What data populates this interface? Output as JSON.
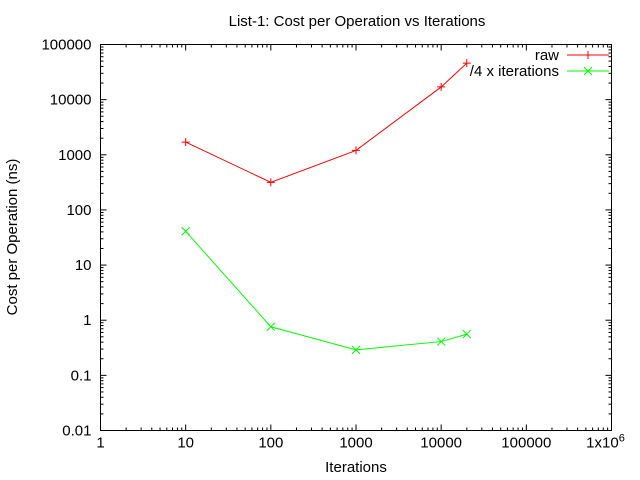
{
  "chart_data": {
    "type": "line",
    "title": "List-1: Cost per Operation vs Iterations",
    "xlabel": "Iterations",
    "ylabel": "Cost per Operation (ns)",
    "xscale": "log",
    "yscale": "log",
    "xlim": [
      1,
      1000000
    ],
    "ylim": [
      0.01,
      100000
    ],
    "x_ticks": [
      {
        "value": 1,
        "label": "1"
      },
      {
        "value": 10,
        "label": "10"
      },
      {
        "value": 100,
        "label": "100"
      },
      {
        "value": 1000,
        "label": "1000"
      },
      {
        "value": 10000,
        "label": "10000"
      },
      {
        "value": 100000,
        "label": "100000"
      },
      {
        "value": 1000000,
        "label": "1x10",
        "sup": "6"
      }
    ],
    "y_ticks": [
      {
        "value": 0.01,
        "label": "0.01"
      },
      {
        "value": 0.1,
        "label": "0.1"
      },
      {
        "value": 1,
        "label": "1"
      },
      {
        "value": 10,
        "label": "10"
      },
      {
        "value": 100,
        "label": "100"
      },
      {
        "value": 1000,
        "label": "1000"
      },
      {
        "value": 10000,
        "label": "10000"
      },
      {
        "value": 100000,
        "label": "100000"
      }
    ],
    "grid": false,
    "legend_position": "top-right",
    "series": [
      {
        "name": "raw",
        "color": "#ff0000",
        "marker": "plus",
        "x": [
          10,
          100,
          1000,
          10000,
          20000
        ],
        "y": [
          1700,
          316,
          1200,
          17000,
          46000
        ]
      },
      {
        "name": "/4 x iterations",
        "color": "#00ff00",
        "marker": "cross",
        "x": [
          10,
          100,
          1000,
          10000,
          20000
        ],
        "y": [
          41,
          0.76,
          0.29,
          0.41,
          0.56
        ]
      }
    ]
  }
}
